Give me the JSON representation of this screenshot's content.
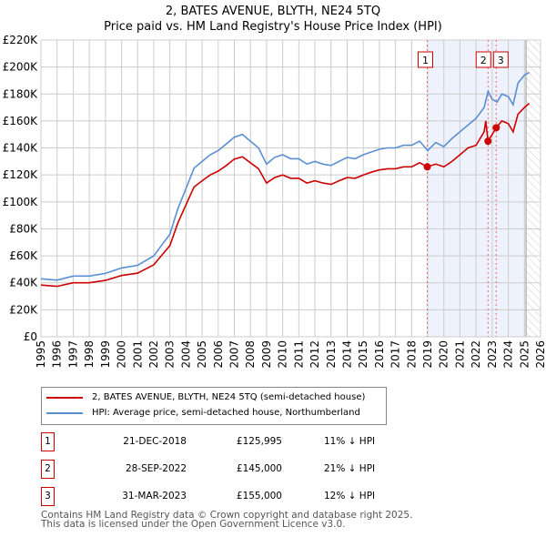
{
  "chart_data": {
    "type": "line",
    "title": "2, BATES AVENUE, BLYTH, NE24 5TQ",
    "subtitle": "Price paid vs. HM Land Registry's House Price Index (HPI)",
    "xlim": [
      1995,
      2026
    ],
    "ylim": [
      0,
      220000
    ],
    "x_ticks": [
      "1995",
      "1996",
      "1997",
      "1998",
      "1999",
      "2000",
      "2001",
      "2002",
      "2003",
      "2004",
      "2005",
      "2006",
      "2007",
      "2008",
      "2009",
      "2010",
      "2011",
      "2012",
      "2013",
      "2014",
      "2015",
      "2016",
      "2017",
      "2018",
      "2019",
      "2020",
      "2021",
      "2022",
      "2023",
      "2024",
      "2025",
      "2026"
    ],
    "y_ticks": [
      {
        "v": 0,
        "label": "£0"
      },
      {
        "v": 20000,
        "label": "£20K"
      },
      {
        "v": 40000,
        "label": "£40K"
      },
      {
        "v": 60000,
        "label": "£60K"
      },
      {
        "v": 80000,
        "label": "£80K"
      },
      {
        "v": 100000,
        "label": "£100K"
      },
      {
        "v": 120000,
        "label": "£120K"
      },
      {
        "v": 140000,
        "label": "£140K"
      },
      {
        "v": 160000,
        "label": "£160K"
      },
      {
        "v": 180000,
        "label": "£180K"
      },
      {
        "v": 200000,
        "label": "£200K"
      },
      {
        "v": 220000,
        "label": "£220K"
      }
    ],
    "grid": true,
    "series": [
      {
        "name": "2, BATES AVENUE, BLYTH, NE24 5TQ (semi-detached house)",
        "color": "#cc0000",
        "x": [
          1995,
          1996,
          1997,
          1998,
          1999,
          2000,
          2001,
          2002,
          2002.5,
          2003,
          2003.5,
          2004,
          2004.5,
          2005,
          2005.5,
          2006,
          2006.5,
          2007,
          2007.5,
          2008,
          2008.5,
          2009,
          2009.5,
          2010,
          2010.5,
          2011,
          2011.5,
          2012,
          2012.5,
          2013,
          2013.5,
          2014,
          2014.5,
          2015,
          2015.5,
          2016,
          2016.5,
          2017,
          2017.5,
          2018,
          2018.5,
          2018.97,
          2019.5,
          2020,
          2020.5,
          2021,
          2021.5,
          2022,
          2022.5,
          2022.6,
          2022.74,
          2023,
          2023.25,
          2023.6,
          2024,
          2024.3,
          2024.6,
          2025,
          2025.3
        ],
        "y": [
          38300,
          37400,
          40000,
          40000,
          41800,
          45400,
          47200,
          53400,
          60500,
          67600,
          84500,
          97900,
          111000,
          115700,
          120000,
          122800,
          127000,
          131700,
          133500,
          129000,
          124600,
          114000,
          118000,
          120000,
          117500,
          117500,
          114000,
          115700,
          114000,
          113000,
          115700,
          118000,
          117500,
          120000,
          122000,
          123700,
          124600,
          124600,
          126000,
          126000,
          129000,
          125995,
          128000,
          126000,
          130000,
          135000,
          140000,
          142000,
          152000,
          160000,
          145000,
          150000,
          155000,
          160000,
          158000,
          152000,
          165000,
          170000,
          173000
        ]
      },
      {
        "name": "HPI: Average price, semi-detached house, Northumberland",
        "color": "#5b8fd4",
        "x": [
          1995,
          1996,
          1997,
          1998,
          1999,
          2000,
          2001,
          2002,
          2002.5,
          2003,
          2003.5,
          2004,
          2004.5,
          2005,
          2005.5,
          2006,
          2006.5,
          2007,
          2007.5,
          2008,
          2008.5,
          2009,
          2009.5,
          2010,
          2010.5,
          2011,
          2011.5,
          2012,
          2012.5,
          2013,
          2013.5,
          2014,
          2014.5,
          2015,
          2015.5,
          2016,
          2016.5,
          2017,
          2017.5,
          2018,
          2018.5,
          2019,
          2019.5,
          2020,
          2020.5,
          2021,
          2021.5,
          2022,
          2022.5,
          2022.75,
          2023,
          2023.3,
          2023.6,
          2024,
          2024.3,
          2024.6,
          2025,
          2025.3
        ],
        "y": [
          43000,
          42000,
          45000,
          45000,
          47000,
          51000,
          53000,
          60000,
          68000,
          76000,
          95000,
          110000,
          125000,
          130000,
          135000,
          138000,
          143000,
          148000,
          150000,
          145000,
          140000,
          128000,
          133000,
          135000,
          132000,
          132000,
          128000,
          130000,
          128000,
          127000,
          130000,
          133000,
          132000,
          135000,
          137000,
          139000,
          140000,
          140000,
          142000,
          142000,
          145000,
          138000,
          144000,
          141000,
          147000,
          152000,
          157000,
          162000,
          170000,
          182000,
          176000,
          174000,
          180000,
          178000,
          172000,
          188000,
          194000,
          196000
        ]
      }
    ],
    "sales": [
      {
        "id": "1",
        "x": 2018.97,
        "y": 125995
      },
      {
        "id": "2",
        "x": 2022.74,
        "y": 145000
      },
      {
        "id": "3",
        "x": 2023.25,
        "y": 155000
      }
    ],
    "shaded_from": 2018.97,
    "hatched_from": 2025.1
  },
  "legend": {
    "red": "2, BATES AVENUE, BLYTH, NE24 5TQ (semi-detached house)",
    "blue": "HPI: Average price, semi-detached house, Northumberland"
  },
  "transactions": [
    {
      "num": "1",
      "date": "21-DEC-2018",
      "price": "£125,995",
      "hpi": "11% ↓ HPI"
    },
    {
      "num": "2",
      "date": "28-SEP-2022",
      "price": "£145,000",
      "hpi": "21% ↓ HPI"
    },
    {
      "num": "3",
      "date": "31-MAR-2023",
      "price": "£155,000",
      "hpi": "12% ↓ HPI"
    }
  ],
  "footer": {
    "line1": "Contains HM Land Registry data © Crown copyright and database right 2025.",
    "line2": "This data is licensed under the Open Government Licence v3.0."
  }
}
